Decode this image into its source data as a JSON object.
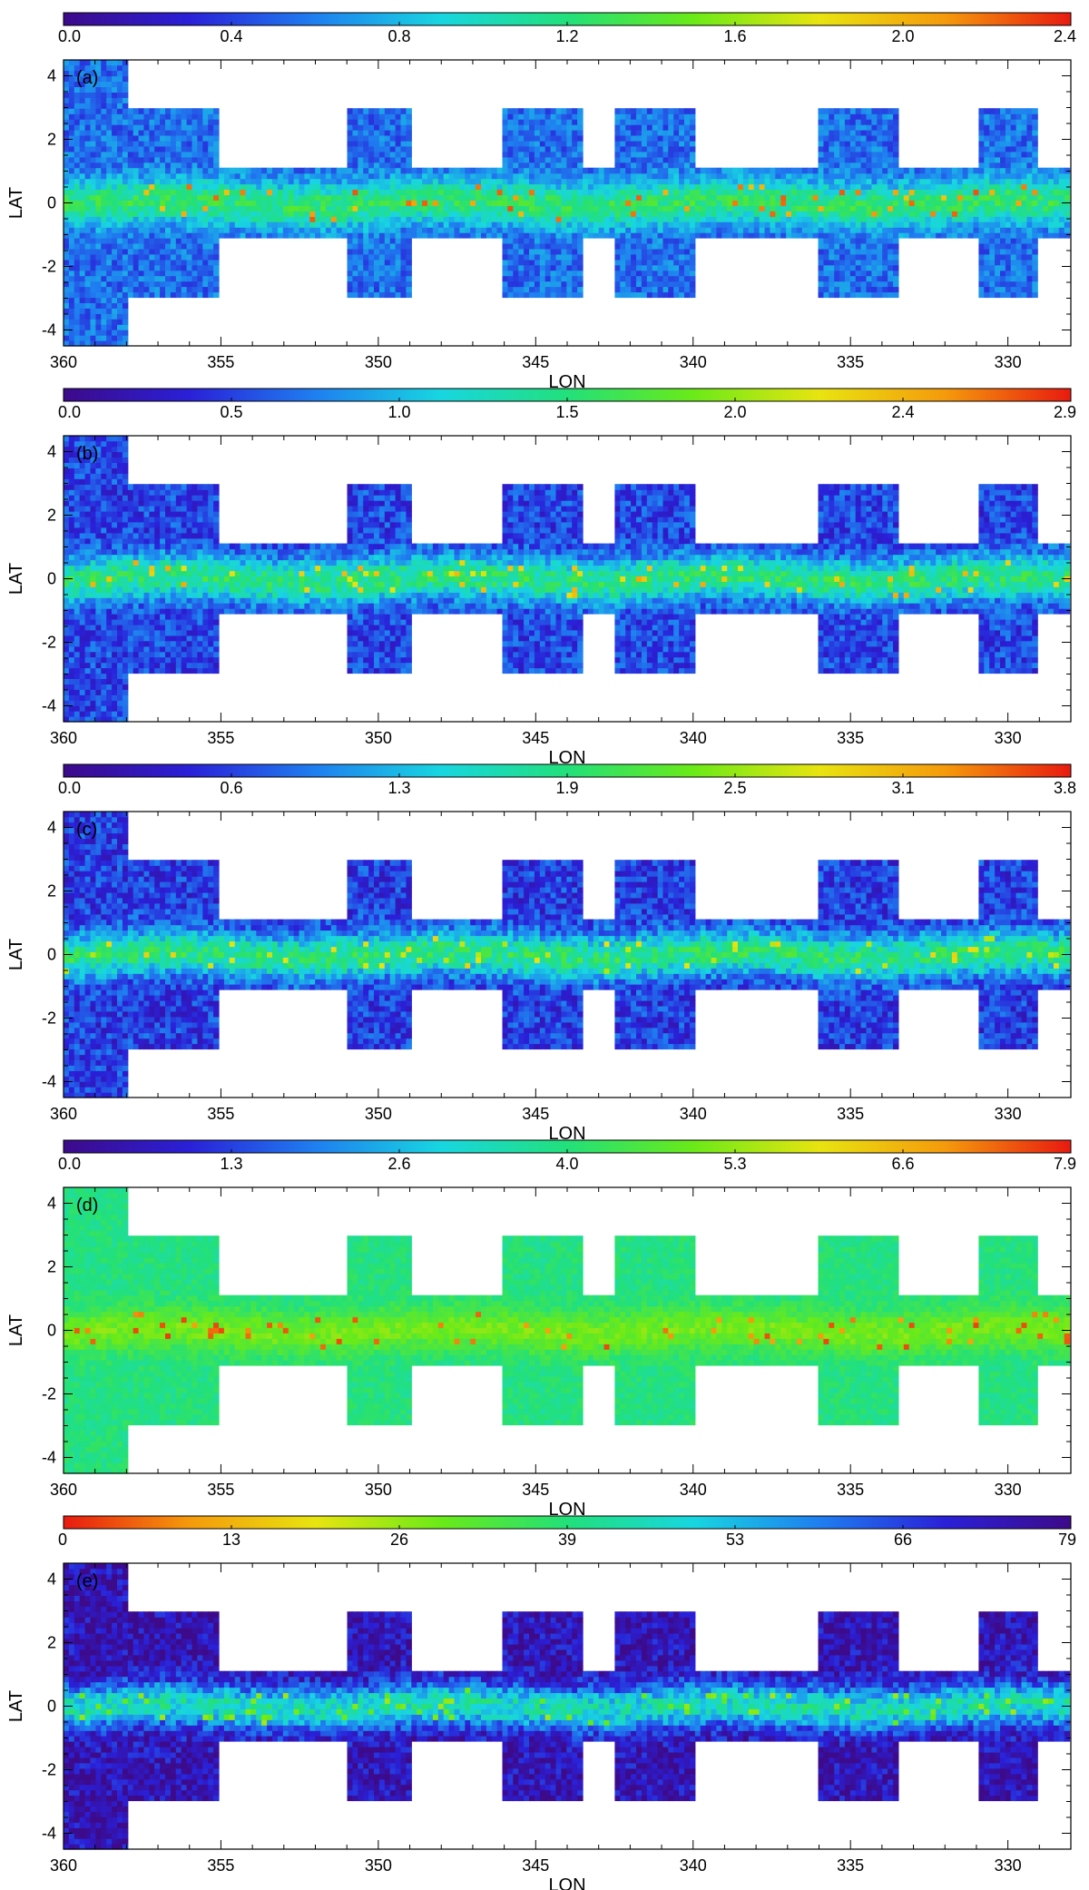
{
  "chart_data": [
    {
      "type": "heatmap",
      "panel_label": "(a)",
      "xlabel": "LON",
      "ylabel": "LAT",
      "xlim": [
        360,
        328
      ],
      "ylim": [
        -4.5,
        4.5
      ],
      "xticks": [
        "360",
        "355",
        "350",
        "345",
        "340",
        "335",
        "330"
      ],
      "yticks": [
        "4",
        "2",
        "0",
        "-2",
        "-4"
      ],
      "colorbar": {
        "ticks": [
          "0.0",
          "0.4",
          "0.8",
          "1.2",
          "1.6",
          "2.0",
          "2.4"
        ],
        "min": 0.0,
        "max": 2.4,
        "colormap": "rainbow",
        "reversed": false
      },
      "field": {
        "bg": 0.55,
        "plane": 1.25,
        "hot": 2.1
      }
    },
    {
      "type": "heatmap",
      "panel_label": "(b)",
      "xlabel": "LON",
      "ylabel": "LAT",
      "xlim": [
        360,
        328
      ],
      "ylim": [
        -4.5,
        4.5
      ],
      "xticks": [
        "360",
        "355",
        "350",
        "345",
        "340",
        "335",
        "330"
      ],
      "yticks": [
        "4",
        "2",
        "0",
        "-2",
        "-4"
      ],
      "colorbar": {
        "ticks": [
          "0.0",
          "0.5",
          "1.0",
          "1.5",
          "2.0",
          "2.4",
          "2.9"
        ],
        "min": 0.0,
        "max": 2.9,
        "colormap": "rainbow",
        "reversed": false
      },
      "field": {
        "bg": 0.5,
        "plane": 1.45,
        "hot": 2.3
      }
    },
    {
      "type": "heatmap",
      "panel_label": "(c)",
      "xlabel": "LON",
      "ylabel": "LAT",
      "xlim": [
        360,
        328
      ],
      "ylim": [
        -4.5,
        4.5
      ],
      "xticks": [
        "360",
        "355",
        "350",
        "345",
        "340",
        "335",
        "330"
      ],
      "yticks": [
        "4",
        "2",
        "0",
        "-2",
        "-4"
      ],
      "colorbar": {
        "ticks": [
          "0.0",
          "0.6",
          "1.3",
          "1.9",
          "2.5",
          "3.1",
          "3.8"
        ],
        "min": 0.0,
        "max": 3.8,
        "colormap": "rainbow",
        "reversed": false
      },
      "field": {
        "bg": 0.6,
        "plane": 1.9,
        "hot": 2.8
      }
    },
    {
      "type": "heatmap",
      "panel_label": "(d)",
      "xlabel": "LON",
      "ylabel": "LAT",
      "xlim": [
        360,
        328
      ],
      "ylim": [
        -4.5,
        4.5
      ],
      "xticks": [
        "360",
        "355",
        "350",
        "345",
        "340",
        "335",
        "330"
      ],
      "yticks": [
        "4",
        "2",
        "0",
        "-2",
        "-4"
      ],
      "colorbar": {
        "ticks": [
          "0.0",
          "1.3",
          "2.6",
          "4.0",
          "5.3",
          "6.6",
          "7.9"
        ],
        "min": 0.0,
        "max": 7.9,
        "colormap": "rainbow",
        "reversed": false
      },
      "field": {
        "bg": 3.9,
        "plane": 5.0,
        "hot": 7.2
      }
    },
    {
      "type": "heatmap",
      "panel_label": "(e)",
      "xlabel": "LON",
      "ylabel": "LAT",
      "xlim": [
        360,
        328
      ],
      "ylim": [
        -4.5,
        4.5
      ],
      "xticks": [
        "360",
        "355",
        "350",
        "345",
        "340",
        "335",
        "330"
      ],
      "yticks": [
        "4",
        "2",
        "0",
        "-2",
        "-4"
      ],
      "colorbar": {
        "ticks": [
          "0",
          "13",
          "26",
          "39",
          "53",
          "66",
          "79"
        ],
        "min": 0,
        "max": 79,
        "colormap": "rainbow",
        "reversed": true
      },
      "field": {
        "bg": 74,
        "plane": 45,
        "hot": 28
      }
    }
  ],
  "colors": {
    "rainbow": [
      "#3d0a8a",
      "#2a20d8",
      "#1f7ff0",
      "#18d6e0",
      "#22e07a",
      "#6aea18",
      "#e8e410",
      "#f59a0c",
      "#e81a10"
    ]
  },
  "coverage": {
    "tiles": [
      {
        "lon": [
          360,
          358
        ],
        "lat": [
          -4.5,
          4.5
        ]
      },
      {
        "lon": [
          358,
          355
        ],
        "lat": [
          -3,
          3
        ]
      },
      {
        "lon": [
          351,
          349
        ],
        "lat": [
          -3,
          3
        ]
      },
      {
        "lon": [
          346,
          343.5
        ],
        "lat": [
          -3,
          3
        ]
      },
      {
        "lon": [
          342.5,
          340
        ],
        "lat": [
          -3,
          3
        ]
      },
      {
        "lon": [
          336,
          333.5
        ],
        "lat": [
          -3,
          3
        ]
      },
      {
        "lon": [
          331,
          329
        ],
        "lat": [
          -3,
          3
        ]
      }
    ],
    "strip": {
      "lon": [
        360,
        328
      ],
      "lat": [
        -1.1,
        1.1
      ]
    }
  }
}
